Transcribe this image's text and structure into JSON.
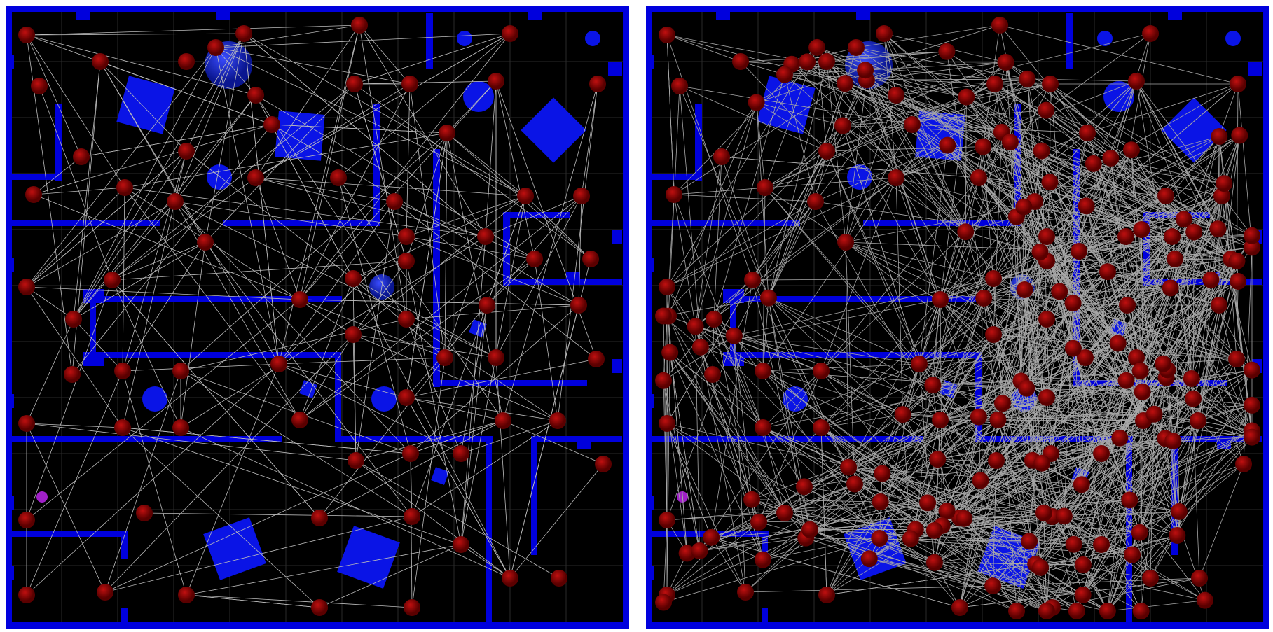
{
  "title": "",
  "colors": {
    "background": "#000000",
    "page_background": "#ffffff",
    "grid": "#2a2a2a",
    "walls": "#0000dd",
    "obstacles": "#0a14e6",
    "nodes": "#8b0000",
    "node_highlight": "#c01010",
    "edges_left": "#bdbdbd",
    "edges_right": "#a8a8a8",
    "goal_marker": "#a020c8"
  },
  "panels": [
    {
      "id": "left",
      "description_label": "",
      "nodes_count_visible": 70,
      "edge_density": "sparse"
    },
    {
      "id": "right",
      "description_label": "",
      "nodes_count_visible": 200,
      "edge_density": "dense"
    }
  ]
}
